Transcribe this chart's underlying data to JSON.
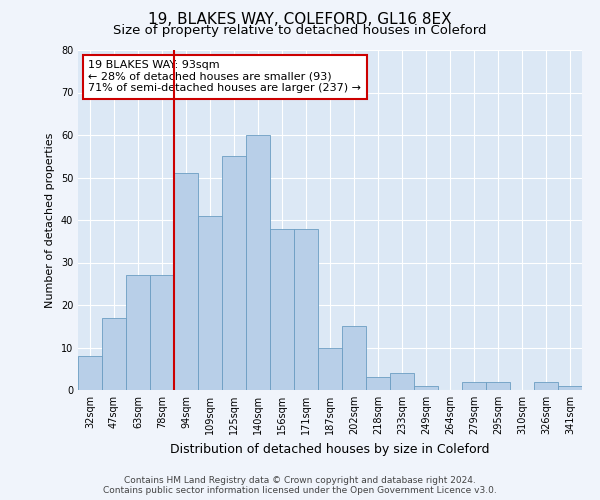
{
  "title1": "19, BLAKES WAY, COLEFORD, GL16 8EX",
  "title2": "Size of property relative to detached houses in Coleford",
  "xlabel": "Distribution of detached houses by size in Coleford",
  "ylabel": "Number of detached properties",
  "categories": [
    "32sqm",
    "47sqm",
    "63sqm",
    "78sqm",
    "94sqm",
    "109sqm",
    "125sqm",
    "140sqm",
    "156sqm",
    "171sqm",
    "187sqm",
    "202sqm",
    "218sqm",
    "233sqm",
    "249sqm",
    "264sqm",
    "279sqm",
    "295sqm",
    "310sqm",
    "326sqm",
    "341sqm"
  ],
  "values": [
    8,
    17,
    27,
    27,
    51,
    41,
    55,
    60,
    38,
    38,
    10,
    15,
    3,
    4,
    1,
    0,
    2,
    2,
    0,
    2,
    1
  ],
  "bar_color": "#b8cfe8",
  "bar_edge_color": "#6b9dc2",
  "bar_width": 1.0,
  "vline_x": 3.5,
  "vline_color": "#cc0000",
  "annotation_line1": "19 BLAKES WAY: 93sqm",
  "annotation_line2": "← 28% of detached houses are smaller (93)",
  "annotation_line3": "71% of semi-detached houses are larger (237) →",
  "ylim": [
    0,
    80
  ],
  "yticks": [
    0,
    10,
    20,
    30,
    40,
    50,
    60,
    70,
    80
  ],
  "fig_facecolor": "#f0f4fb",
  "ax_facecolor": "#dce8f5",
  "grid_color": "#ffffff",
  "footer_line1": "Contains HM Land Registry data © Crown copyright and database right 2024.",
  "footer_line2": "Contains public sector information licensed under the Open Government Licence v3.0.",
  "title1_fontsize": 11,
  "title2_fontsize": 9.5,
  "xlabel_fontsize": 9,
  "ylabel_fontsize": 8,
  "annotation_fontsize": 8,
  "footer_fontsize": 6.5,
  "tick_fontsize": 7
}
